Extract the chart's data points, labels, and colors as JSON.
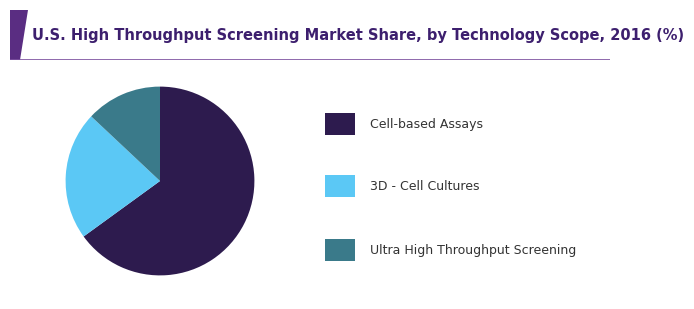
{
  "title": "U.S. High Throughput Screening Market Share, by Technology Scope, 2016 (%)",
  "slices": [
    65,
    22,
    13
  ],
  "labels": [
    "Cell-based Assays",
    "3D - Cell Cultures",
    "Ultra High Throughput Screening"
  ],
  "colors": [
    "#2d1b4e",
    "#5bc8f5",
    "#3a7a8a"
  ],
  "start_angle": 90,
  "title_fontsize": 10.5,
  "legend_fontsize": 9,
  "background_color": "#ffffff",
  "title_color": "#3d1f6e",
  "accent_color": "#5a2d82",
  "header_line_color": "#7b4f9e"
}
